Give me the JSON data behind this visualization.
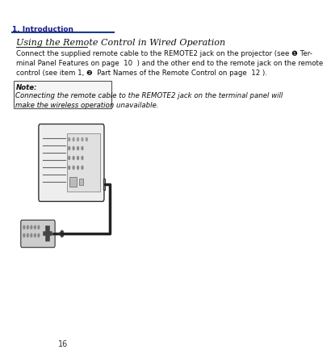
{
  "page_bg": "#ffffff",
  "header_label": "1. Introduction",
  "header_label_color": "#1a1a8c",
  "header_line_color": "#1a3a8c",
  "section_title": "Using the Remote Control in Wired Operation",
  "body_text": "Connect the supplied remote cable to the REMOTE2 jack on the projector (see ❶ Ter-\nminal Panel Features on page  10  ) and the other end to the remote jack on the remote\ncontrol (see item 1, ❷  Part Names of the Remote Control on page  12 ).",
  "note_label": "Note:",
  "note_text": "Connecting the remote cable to the REMOTE2 jack on the terminal panel will\nmake the wireless operation unavailable.",
  "page_number": "16",
  "body_fontsize": 6.2,
  "note_fontsize": 6.2,
  "header_fontsize": 6.5,
  "title_fontsize": 8.0
}
